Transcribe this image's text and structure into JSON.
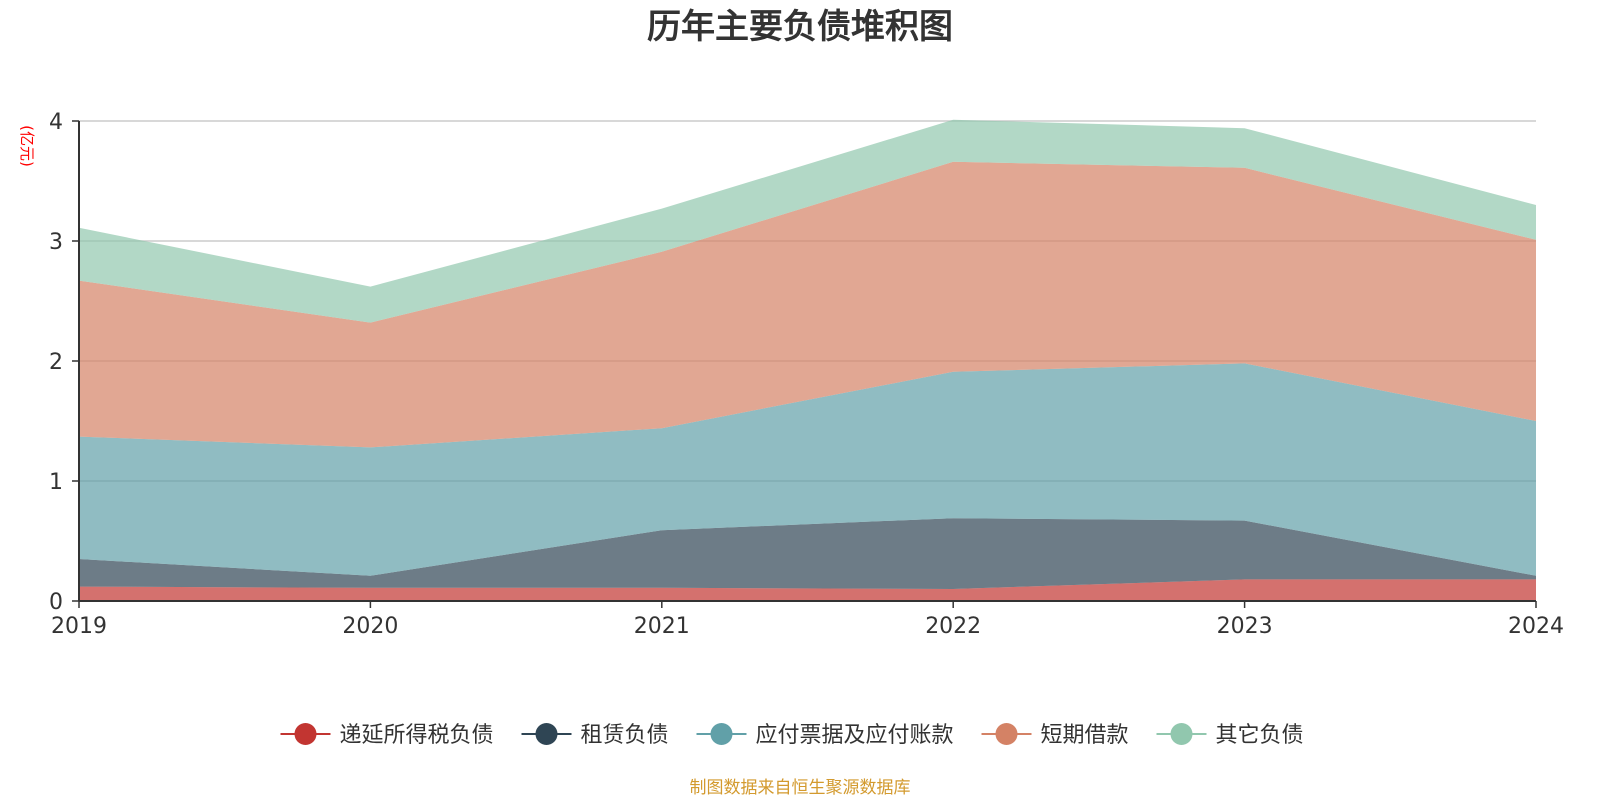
{
  "chart_data": {
    "type": "area",
    "stacked": true,
    "title": "历年主要负债堆积图",
    "unit_label": "(亿元)",
    "x": [
      "2019",
      "2020",
      "2021",
      "2022",
      "2023",
      "2024"
    ],
    "ylim": [
      0,
      4
    ],
    "yticks": [
      "0",
      "1",
      "2",
      "3",
      "4"
    ],
    "grid": true,
    "legend_position": "bottom",
    "series": [
      {
        "name": "递延所得税负债",
        "color": "#c23531",
        "values": [
          0.12,
          0.11,
          0.11,
          0.1,
          0.18,
          0.18
        ]
      },
      {
        "name": "租赁负债",
        "color": "#2f4554",
        "values": [
          0.23,
          0.1,
          0.48,
          0.59,
          0.49,
          0.03
        ]
      },
      {
        "name": "应付票据及应付账款",
        "color": "#61a0a8",
        "values": [
          1.02,
          1.07,
          0.85,
          1.22,
          1.31,
          1.29
        ]
      },
      {
        "name": "短期借款",
        "color": "#d48265",
        "values": [
          1.3,
          1.04,
          1.47,
          1.75,
          1.63,
          1.51
        ]
      },
      {
        "name": "其它负债",
        "color": "#91c7ae",
        "values": [
          0.44,
          0.3,
          0.36,
          0.35,
          0.33,
          0.29
        ]
      }
    ]
  },
  "source_text": "制图数据来自恒生聚源数据库"
}
